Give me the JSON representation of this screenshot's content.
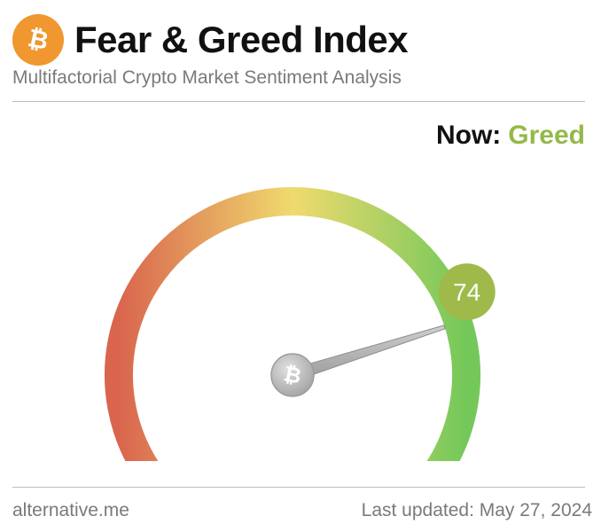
{
  "header": {
    "logo_icon": "bitcoin-icon",
    "title": "Fear & Greed Index",
    "subtitle": "Multifactorial Crypto Market Sentiment Analysis"
  },
  "status": {
    "now_label": "Now:",
    "now_value": "Greed",
    "now_color": "#94b94a"
  },
  "gauge": {
    "value": 74,
    "min": 0,
    "max": 100,
    "badge_color": "#9fba4a",
    "center_icon": "bitcoin-icon",
    "colors": {
      "fear": "#d9654e",
      "neutral": "#f0da6e",
      "greed": "#74c85a"
    }
  },
  "footer": {
    "source": "alternative.me",
    "last_updated": "Last updated: May 27, 2024"
  }
}
